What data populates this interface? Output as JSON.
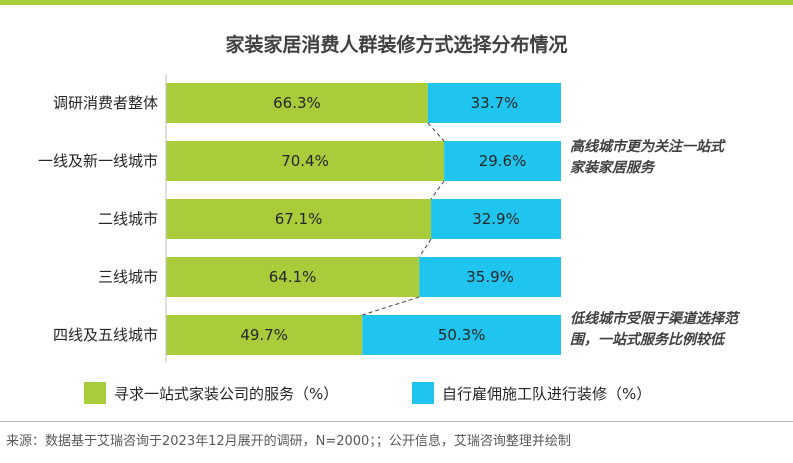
{
  "title": "家装家居消费人群装修方式选择分布情况",
  "colors": {
    "series1": "#a9cc3a",
    "series2": "#1fc5ee",
    "accent": "#a9cc3a"
  },
  "legend": {
    "series1": "寻求一站式家装公司的服务（%）",
    "series2": "自行雇佣施工队进行装修（%）"
  },
  "annotations": {
    "top": [
      "高线城市更为关注一站式",
      "家装家居服务"
    ],
    "bottom": [
      "低线城市受限于渠道选择范",
      "围，一站式服务比例较低"
    ]
  },
  "source": "来源：数据基于艾瑞咨询于2023年12月展开的调研，N=2000；；公开信息，艾瑞咨询整理并绘制",
  "chart_data": {
    "type": "bar",
    "orientation": "horizontal",
    "stacked": true,
    "percent": true,
    "title": "家装家居消费人群装修方式选择分布情况",
    "categories": [
      "调研消费者整体",
      "一线及新一线城市",
      "二线城市",
      "三线城市",
      "四线及五线城市"
    ],
    "series": [
      {
        "name": "寻求一站式家装公司的服务（%）",
        "values": [
          66.3,
          70.4,
          67.1,
          64.1,
          49.7
        ],
        "labels": [
          "66.3%",
          "70.4%",
          "67.1%",
          "64.1%",
          "49.7%"
        ]
      },
      {
        "name": "自行雇佣施工队进行装修（%）",
        "values": [
          33.7,
          29.6,
          32.9,
          35.9,
          50.3
        ],
        "labels": [
          "33.7%",
          "29.6%",
          "32.9%",
          "35.9%",
          "50.3%"
        ]
      }
    ],
    "xlim": [
      0,
      100
    ],
    "grid": false,
    "legend_position": "bottom"
  }
}
